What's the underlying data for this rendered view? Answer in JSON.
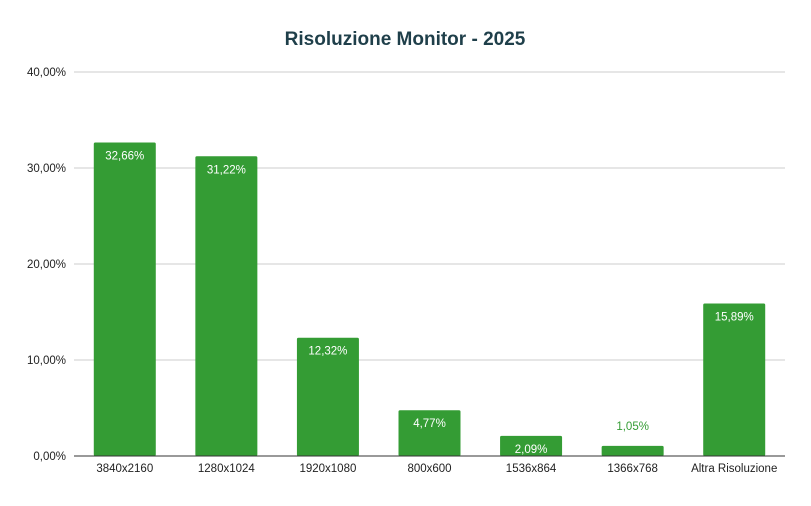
{
  "chart_data": {
    "type": "bar",
    "title": "Risoluzione Monitor - 2025",
    "xlabel": "",
    "ylabel": "",
    "ylim": [
      0,
      40
    ],
    "yticks": [
      0,
      10,
      20,
      30,
      40
    ],
    "ytick_labels": [
      "0,00%",
      "10,00%",
      "20,00%",
      "30,00%",
      "40,00%"
    ],
    "grid": true,
    "legend": "none",
    "categories": [
      "3840x2160",
      "1280x1024",
      "1920x1080",
      "800x600",
      "1536x864",
      "1366x768",
      "Altra Risoluzione"
    ],
    "values": [
      32.66,
      31.22,
      12.32,
      4.77,
      2.09,
      1.05,
      15.89
    ],
    "data_labels": [
      "32,66%",
      "31,22%",
      "12,32%",
      "4,77%",
      "2,09%",
      "1,05%",
      "15,89%"
    ],
    "colors": {
      "bar": "#349c34",
      "label_inside": "#ffffff",
      "label_outside": "#349c34",
      "title": "#1f3f4a",
      "grid": "#cccccc"
    }
  }
}
